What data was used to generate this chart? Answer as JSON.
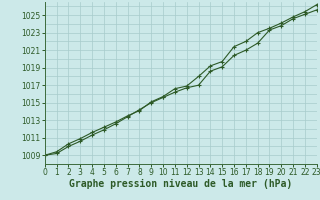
{
  "title": "Graphe pression niveau de la mer (hPa)",
  "bg_color": "#cce9e9",
  "grid_color": "#a8cccc",
  "line_color": "#2d5a27",
  "x_values": [
    0,
    1,
    2,
    3,
    4,
    5,
    6,
    7,
    8,
    9,
    10,
    11,
    12,
    13,
    14,
    15,
    16,
    17,
    18,
    19,
    20,
    21,
    22,
    23
  ],
  "y_line1": [
    1009.0,
    1009.2,
    1010.0,
    1010.6,
    1011.3,
    1011.9,
    1012.6,
    1013.4,
    1014.2,
    1015.0,
    1015.6,
    1016.2,
    1016.7,
    1017.0,
    1018.6,
    1019.1,
    1020.4,
    1021.0,
    1021.8,
    1023.3,
    1023.8,
    1024.6,
    1025.1,
    1025.6
  ],
  "y_line2": [
    1009.0,
    1009.4,
    1010.3,
    1010.9,
    1011.6,
    1012.2,
    1012.8,
    1013.5,
    1014.1,
    1015.1,
    1015.7,
    1016.6,
    1016.9,
    1018.0,
    1019.2,
    1019.7,
    1021.4,
    1022.0,
    1023.0,
    1023.5,
    1024.1,
    1024.8,
    1025.4,
    1026.2
  ],
  "ylim": [
    1008.0,
    1026.5
  ],
  "yticks": [
    1009,
    1011,
    1013,
    1015,
    1017,
    1019,
    1021,
    1023,
    1025
  ],
  "xlim": [
    0,
    23
  ],
  "xticks": [
    0,
    1,
    2,
    3,
    4,
    5,
    6,
    7,
    8,
    9,
    10,
    11,
    12,
    13,
    14,
    15,
    16,
    17,
    18,
    19,
    20,
    21,
    22,
    23
  ],
  "tick_fontsize": 5.5,
  "title_fontsize": 7.0,
  "title_color": "#2d5a27",
  "tick_color": "#2d5a27",
  "spine_color": "#3d6b3d"
}
